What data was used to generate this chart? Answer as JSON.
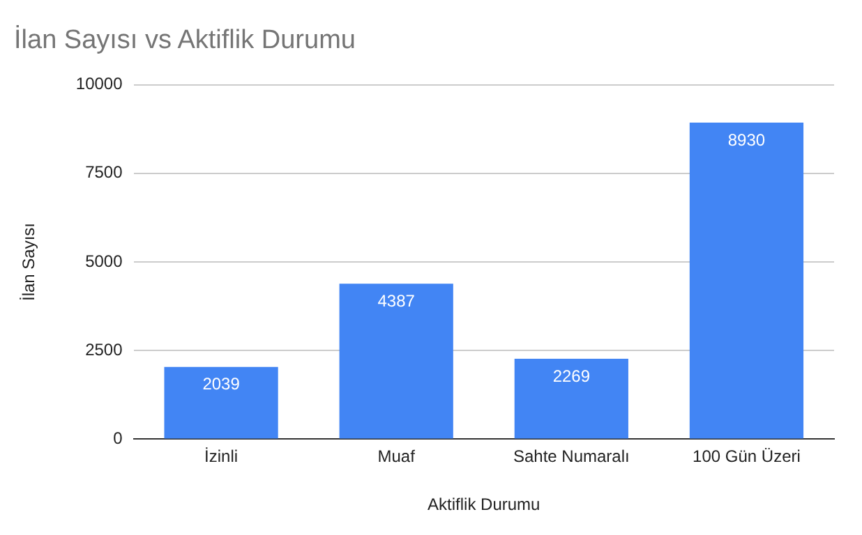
{
  "chart_data": {
    "type": "bar",
    "title": "İlan Sayısı vs Aktiflik Durumu",
    "xlabel": "Aktiflik Durumu",
    "ylabel": "İlan Sayısı",
    "categories": [
      "İzinli",
      "Muaf",
      "Sahte Numaralı",
      "100 Gün Üzeri"
    ],
    "values": [
      2039,
      4387,
      2269,
      8930
    ],
    "color": "#4285f4",
    "ylim": [
      0,
      10000
    ],
    "yticks": [
      0,
      2500,
      5000,
      7500,
      10000
    ],
    "grid": "y",
    "legend": false,
    "data_labels": true
  }
}
